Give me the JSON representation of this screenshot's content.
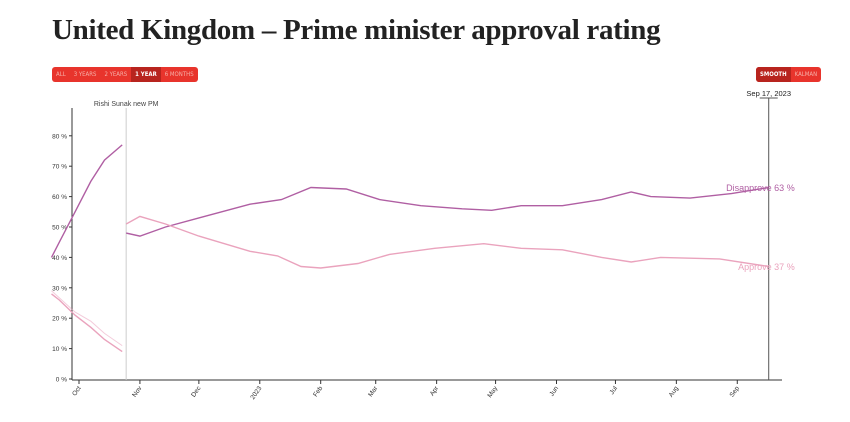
{
  "title": "United Kingdom – Prime minister approval rating",
  "range_buttons": [
    {
      "label": "All",
      "active": false
    },
    {
      "label": "3 years",
      "active": false
    },
    {
      "label": "2 years",
      "active": false
    },
    {
      "label": "1 year",
      "active": true
    },
    {
      "label": "6 months",
      "active": false
    }
  ],
  "method_buttons": [
    {
      "label": "Smooth",
      "active": true
    },
    {
      "label": "Kalman",
      "active": false
    }
  ],
  "colors": {
    "button": "#e8342c",
    "button_active": "#b8241e",
    "disapprove": "#b05fa3",
    "approve": "#eaa3bd"
  },
  "chart_data": {
    "type": "line",
    "ylim": [
      0,
      90
    ],
    "yticks": [
      "0 %",
      "10 %",
      "20 %",
      "30 %",
      "40 %",
      "50 %",
      "60 %",
      "70 %",
      "80 %"
    ],
    "xticks": [
      {
        "label": "Oct",
        "date": "2022-10-01"
      },
      {
        "label": "Nov",
        "date": "2022-11-01"
      },
      {
        "label": "Dec",
        "date": "2022-12-01"
      },
      {
        "label": "2023",
        "date": "2023-01-01"
      },
      {
        "label": "Feb",
        "date": "2023-02-01"
      },
      {
        "label": "Mar",
        "date": "2023-03-01"
      },
      {
        "label": "Apr",
        "date": "2023-04-01"
      },
      {
        "label": "May",
        "date": "2023-05-01"
      },
      {
        "label": "Jun",
        "date": "2023-06-01"
      },
      {
        "label": "Jul",
        "date": "2023-07-01"
      },
      {
        "label": "Aug",
        "date": "2023-08-01"
      },
      {
        "label": "Sep",
        "date": "2023-09-01"
      }
    ],
    "annotation": {
      "label": "Rishi Sunak new PM",
      "date": "2022-10-25"
    },
    "cursor": {
      "label": "Sep 17, 2023",
      "date": "2023-09-17"
    },
    "series": [
      {
        "name": "Disapprove",
        "end_label": "Disapprove 63 %",
        "color": "#b05fa3",
        "segments": [
          [
            [
              "2022-09-17",
              40
            ],
            [
              "2022-09-21",
              45
            ],
            [
              "2022-09-29",
              55
            ],
            [
              "2022-10-07",
              65
            ],
            [
              "2022-10-14",
              72
            ],
            [
              "2022-10-23",
              77
            ]
          ],
          [
            [
              "2022-10-25",
              48
            ],
            [
              "2022-11-01",
              47
            ],
            [
              "2022-11-14",
              50
            ],
            [
              "2022-12-01",
              53
            ],
            [
              "2022-12-27",
              57.5
            ],
            [
              "2023-01-12",
              59
            ],
            [
              "2023-01-27",
              63
            ],
            [
              "2023-02-14",
              62.5
            ],
            [
              "2023-03-03",
              59
            ],
            [
              "2023-03-24",
              57
            ],
            [
              "2023-04-14",
              56
            ],
            [
              "2023-04-29",
              55.5
            ],
            [
              "2023-05-14",
              57
            ],
            [
              "2023-06-04",
              57
            ],
            [
              "2023-06-24",
              59
            ],
            [
              "2023-07-09",
              61.5
            ],
            [
              "2023-07-19",
              60
            ],
            [
              "2023-08-08",
              59.5
            ],
            [
              "2023-08-29",
              61
            ],
            [
              "2023-09-17",
              63
            ]
          ]
        ]
      },
      {
        "name": "Approve",
        "end_label": "Approve 37 %",
        "color": "#eaa3bd",
        "segments": [
          [
            [
              "2022-09-17",
              28
            ],
            [
              "2022-09-21",
              26
            ],
            [
              "2022-09-29",
              21
            ],
            [
              "2022-10-07",
              17
            ],
            [
              "2022-10-14",
              13
            ],
            [
              "2022-10-23",
              9
            ]
          ],
          [
            [
              "2022-09-17",
              29
            ],
            [
              "2022-09-29",
              22
            ],
            [
              "2022-10-07",
              19
            ],
            [
              "2022-10-14",
              15
            ],
            [
              "2022-10-23",
              11
            ]
          ],
          [
            [
              "2022-10-25",
              51
            ],
            [
              "2022-11-01",
              53.5
            ],
            [
              "2022-11-14",
              51
            ],
            [
              "2022-12-01",
              47
            ],
            [
              "2022-12-27",
              42
            ],
            [
              "2023-01-10",
              40.5
            ],
            [
              "2023-01-22",
              37
            ],
            [
              "2023-02-01",
              36.5
            ],
            [
              "2023-02-20",
              38
            ],
            [
              "2023-03-08",
              41
            ],
            [
              "2023-03-31",
              43
            ],
            [
              "2023-04-25",
              44.5
            ],
            [
              "2023-05-14",
              43
            ],
            [
              "2023-06-04",
              42.5
            ],
            [
              "2023-06-24",
              40
            ],
            [
              "2023-07-09",
              38.5
            ],
            [
              "2023-07-24",
              40
            ],
            [
              "2023-08-23",
              39.5
            ],
            [
              "2023-09-17",
              37
            ]
          ]
        ]
      }
    ]
  }
}
